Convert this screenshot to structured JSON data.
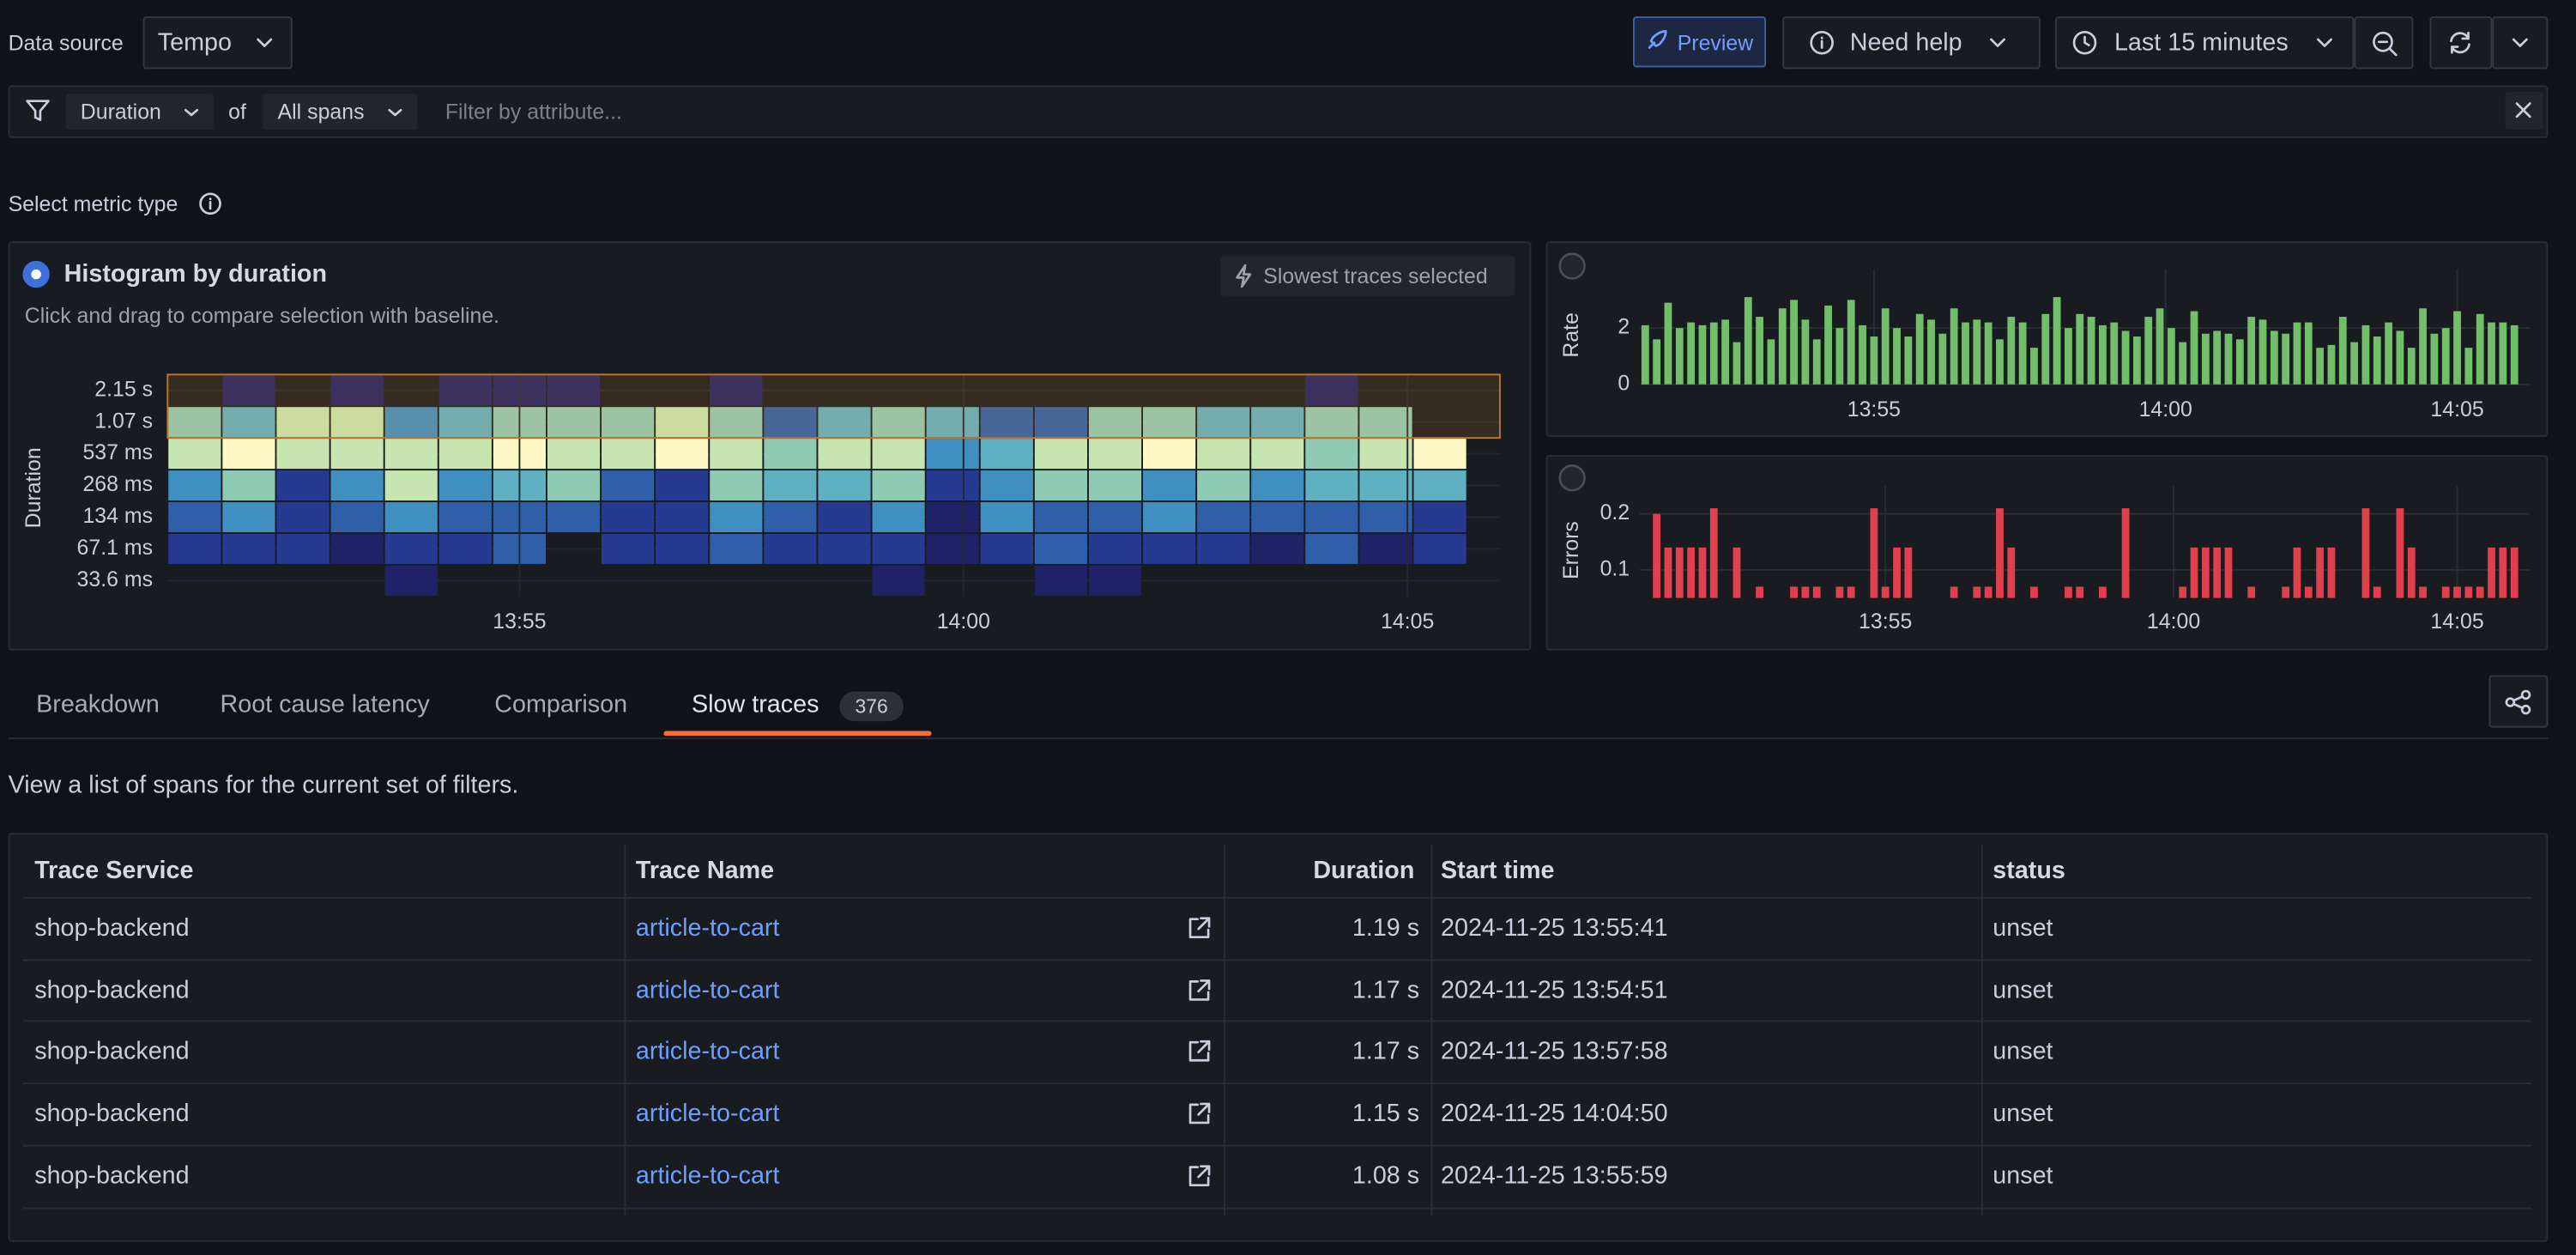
{
  "header": {
    "data_source_label": "Data source",
    "data_source": "Tempo",
    "preview": "Preview",
    "help": "Need help",
    "time_range": "Last 15 minutes"
  },
  "filter": {
    "metric": "Duration",
    "of": "of",
    "scope": "All spans",
    "placeholder": "Filter by attribute..."
  },
  "metric_type_label": "Select metric type",
  "histogram": {
    "type": "heatmap",
    "title": "Histogram by duration",
    "subtitle": "Click and drag to compare selection with baseline.",
    "badge": "Slowest traces selected",
    "y_label": "Duration",
    "rows": [
      "2.15 s",
      "1.07 s",
      "537 ms",
      "268 ms",
      "134 ms",
      "67.1 ms",
      "33.6 ms"
    ],
    "colors": [
      "transparent",
      "#1f2266",
      "#263a92",
      "#2f5fa9",
      "#3f8fc0",
      "#5fb0c0",
      "#8fcbb4",
      "#c6e5b0",
      "#fdf8c4"
    ],
    "cells": [
      [
        0,
        1,
        0,
        1,
        0,
        1,
        1,
        1,
        0,
        0,
        1,
        0,
        0,
        0,
        0,
        0,
        0,
        0,
        0,
        0,
        0,
        1,
        0,
        0
      ],
      [
        6,
        5,
        7,
        7,
        4,
        5,
        6,
        6,
        6,
        7,
        6,
        3,
        5,
        6,
        5,
        3,
        3,
        6,
        6,
        5,
        5,
        6,
        6,
        0
      ],
      [
        7,
        8,
        7,
        7,
        7,
        7,
        8,
        7,
        7,
        8,
        7,
        6,
        7,
        7,
        4,
        5,
        7,
        7,
        8,
        7,
        7,
        6,
        7,
        8
      ],
      [
        4,
        6,
        2,
        4,
        7,
        4,
        5,
        6,
        3,
        2,
        6,
        5,
        5,
        6,
        2,
        4,
        6,
        6,
        4,
        6,
        4,
        5,
        5,
        5
      ],
      [
        3,
        4,
        2,
        3,
        4,
        3,
        3,
        3,
        2,
        2,
        4,
        3,
        2,
        4,
        1,
        4,
        3,
        3,
        4,
        3,
        3,
        3,
        3,
        2
      ],
      [
        2,
        2,
        2,
        1,
        2,
        2,
        3,
        0,
        2,
        2,
        3,
        2,
        2,
        2,
        1,
        2,
        3,
        2,
        2,
        2,
        1,
        3,
        1,
        2
      ],
      [
        0,
        0,
        0,
        0,
        1,
        0,
        0,
        0,
        0,
        0,
        0,
        0,
        0,
        1,
        0,
        0,
        1,
        1,
        0,
        0,
        0,
        0,
        0,
        0
      ]
    ],
    "xticks": [
      {
        "value": 6.5,
        "label": "13:55"
      },
      {
        "value": 14.7,
        "label": "14:00"
      },
      {
        "value": 22.9,
        "label": "14:05"
      }
    ]
  },
  "rate_chart": {
    "type": "bar",
    "y_label": "Rate",
    "color": "#73bf69",
    "values": [
      2.1,
      1.6,
      2.9,
      2.0,
      2.2,
      2.1,
      2.2,
      2.3,
      1.5,
      3.1,
      2.4,
      1.6,
      2.7,
      3.0,
      2.3,
      1.6,
      2.8,
      2.0,
      3.0,
      2.1,
      1.7,
      2.7,
      2.0,
      1.7,
      2.5,
      2.3,
      1.8,
      2.7,
      2.2,
      2.3,
      2.2,
      1.6,
      2.4,
      2.2,
      1.3,
      2.5,
      3.1,
      2.0,
      2.5,
      2.4,
      2.1,
      2.2,
      1.9,
      1.7,
      2.4,
      2.7,
      2.0,
      1.5,
      2.6,
      1.8,
      1.9,
      1.8,
      1.6,
      2.4,
      2.3,
      1.9,
      1.8,
      2.2,
      2.2,
      1.3,
      1.4,
      2.4,
      1.5,
      2.1,
      1.7,
      2.2,
      1.9,
      1.3,
      2.7,
      1.8,
      2.0,
      2.6,
      1.3,
      2.5,
      2.2,
      2.2,
      2.1
    ],
    "ylim": [
      0,
      3.5
    ],
    "yticks": [
      0,
      2
    ],
    "xticks": [
      {
        "value": 20,
        "label": "13:55"
      },
      {
        "value": 45.5,
        "label": "14:00"
      },
      {
        "value": 71,
        "label": "14:05"
      }
    ]
  },
  "errors_chart": {
    "type": "bar",
    "y_label": "Errors",
    "color": "#e0404e",
    "values": [
      null,
      0.2,
      0.14,
      0.14,
      0.14,
      0.14,
      0.21,
      null,
      0.14,
      null,
      0.07,
      null,
      null,
      0.07,
      0.07,
      0.07,
      null,
      0.07,
      0.07,
      null,
      0.21,
      0.07,
      0.14,
      0.14,
      null,
      null,
      null,
      0.07,
      null,
      0.07,
      0.07,
      0.21,
      0.14,
      null,
      0.07,
      null,
      null,
      0.07,
      0.07,
      null,
      0.07,
      null,
      0.21,
      null,
      null,
      null,
      null,
      0.07,
      0.14,
      0.14,
      0.14,
      0.14,
      null,
      0.07,
      null,
      null,
      0.07,
      0.14,
      0.07,
      0.14,
      0.14,
      null,
      null,
      0.21,
      0.07,
      null,
      0.21,
      0.14,
      0.07,
      null,
      0.07,
      0.07,
      0.07,
      0.07,
      0.14,
      0.14,
      0.14
    ],
    "ylim": [
      0.05,
      0.22
    ],
    "yticks": [
      0.1,
      0.2
    ],
    "xticks": [
      {
        "value": 21,
        "label": "13:55"
      },
      {
        "value": 46.2,
        "label": "14:00"
      },
      {
        "value": 71,
        "label": "14:05"
      }
    ]
  },
  "tabs": [
    {
      "label": "Breakdown"
    },
    {
      "label": "Root cause latency"
    },
    {
      "label": "Comparison"
    },
    {
      "label": "Slow traces",
      "count": 376
    }
  ],
  "description": "View a list of spans for the current set of filters.",
  "table": {
    "columns": [
      "Trace Service",
      "Trace Name",
      "Duration",
      "Start time",
      "status"
    ],
    "rows": [
      [
        "shop-backend",
        "article-to-cart",
        "1.19 s",
        "2024-11-25 13:55:41",
        "unset"
      ],
      [
        "shop-backend",
        "article-to-cart",
        "1.17 s",
        "2024-11-25 13:54:51",
        "unset"
      ],
      [
        "shop-backend",
        "article-to-cart",
        "1.17 s",
        "2024-11-25 13:57:58",
        "unset"
      ],
      [
        "shop-backend",
        "article-to-cart",
        "1.15 s",
        "2024-11-25 14:04:50",
        "unset"
      ],
      [
        "shop-backend",
        "article-to-cart",
        "1.08 s",
        "2024-11-25 13:55:59",
        "unset"
      ]
    ]
  }
}
